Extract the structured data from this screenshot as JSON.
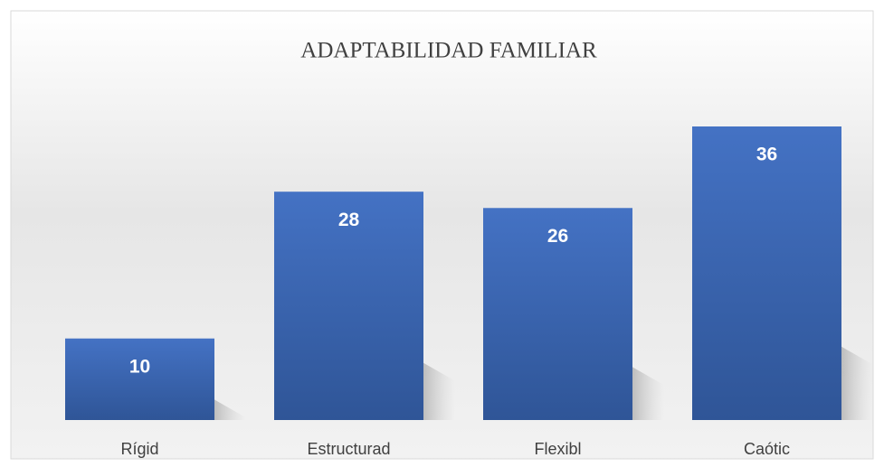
{
  "chart_data": {
    "type": "bar",
    "title": "ADAPTABILIDAD FAMILIAR",
    "categories": [
      "Rígid",
      "Estructurad",
      "Flexibl",
      "Caótic"
    ],
    "values": [
      10,
      28,
      26,
      36
    ],
    "color": "#4472c4"
  }
}
